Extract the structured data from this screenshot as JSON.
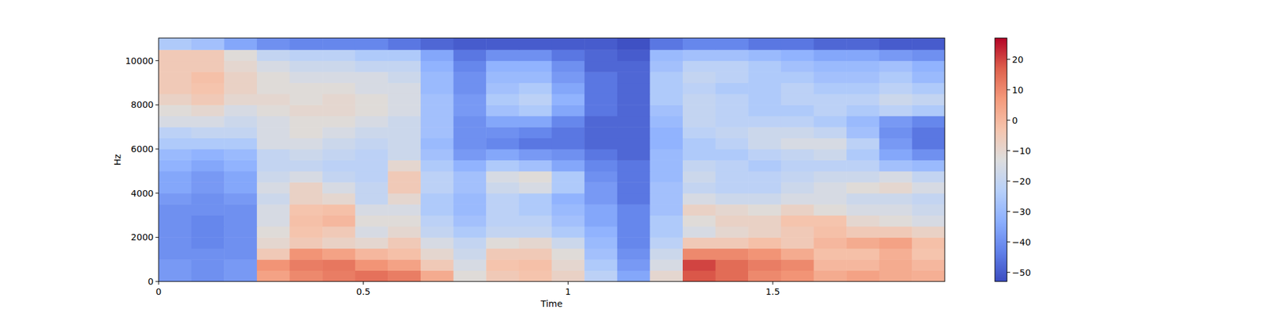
{
  "chart_data": {
    "type": "heatmap",
    "x_label": "Time",
    "y_label": "Hz",
    "x_bins": [
      0,
      0.08,
      0.16,
      0.24,
      0.32,
      0.4,
      0.48,
      0.56,
      0.64,
      0.72,
      0.8,
      0.88,
      0.96,
      1.04,
      1.12,
      1.2,
      1.28,
      1.36,
      1.44,
      1.52,
      1.6,
      1.68,
      1.76,
      1.84,
      1.92
    ],
    "y_bins": [
      0,
      500,
      1000,
      1500,
      2000,
      2500,
      3000,
      3500,
      4000,
      4500,
      5000,
      5500,
      6000,
      6500,
      7000,
      7500,
      8000,
      8500,
      9000,
      9500,
      10000,
      10500,
      11025
    ],
    "values": [
      [
        -38,
        -40,
        -38,
        5,
        10,
        12,
        14,
        12,
        3,
        -12,
        -5,
        -3,
        -8,
        -22,
        -35,
        -10,
        18,
        15,
        10,
        8,
        3,
        5,
        3,
        2
      ],
      [
        -38,
        -40,
        -38,
        8,
        12,
        13,
        8,
        5,
        -5,
        -15,
        -3,
        -2,
        -10,
        -25,
        -38,
        -15,
        20,
        15,
        12,
        10,
        0,
        0,
        3,
        0
      ],
      [
        -40,
        -40,
        -40,
        -5,
        8,
        5,
        0,
        -2,
        -10,
        -18,
        -5,
        -5,
        -12,
        -28,
        -40,
        -18,
        10,
        10,
        8,
        3,
        -2,
        -2,
        2,
        -3
      ],
      [
        -40,
        -42,
        -40,
        -10,
        -5,
        -8,
        -10,
        -5,
        -15,
        -20,
        -12,
        -10,
        -18,
        -30,
        -42,
        -22,
        -5,
        -5,
        -2,
        -5,
        0,
        3,
        5,
        -2
      ],
      [
        -40,
        -42,
        -40,
        -12,
        -3,
        -5,
        -15,
        -10,
        -20,
        -25,
        -20,
        -20,
        -25,
        -32,
        -42,
        -25,
        -15,
        -10,
        -8,
        -5,
        -2,
        -5,
        -5,
        -8
      ],
      [
        -40,
        -42,
        -40,
        -15,
        -2,
        0,
        -12,
        -12,
        -22,
        -28,
        -22,
        -22,
        -28,
        -35,
        -42,
        -25,
        -12,
        -8,
        -8,
        -3,
        -3,
        -10,
        -12,
        -15
      ],
      [
        -40,
        -40,
        -40,
        -15,
        -3,
        -2,
        -15,
        -15,
        -25,
        -30,
        -22,
        -25,
        -30,
        -35,
        -42,
        -28,
        -8,
        -10,
        -12,
        -8,
        -12,
        -15,
        -15,
        -18
      ],
      [
        -38,
        -40,
        -38,
        -18,
        -8,
        -10,
        -20,
        -10,
        -25,
        -30,
        -22,
        -25,
        -32,
        -38,
        -45,
        -28,
        -15,
        -18,
        -18,
        -15,
        -15,
        -18,
        -18,
        -20
      ],
      [
        -35,
        -38,
        -35,
        -15,
        -8,
        -15,
        -20,
        -5,
        -22,
        -28,
        -18,
        -15,
        -25,
        -38,
        -45,
        -28,
        -20,
        -22,
        -22,
        -18,
        -15,
        -12,
        -10,
        -15
      ],
      [
        -35,
        -38,
        -35,
        -18,
        -15,
        -20,
        -22,
        -5,
        -22,
        -28,
        -15,
        -12,
        -25,
        -40,
        -45,
        -30,
        -18,
        -22,
        -22,
        -20,
        -18,
        -18,
        -15,
        -20
      ],
      [
        -32,
        -35,
        -32,
        -20,
        -20,
        -22,
        -22,
        -10,
        -25,
        -32,
        -25,
        -28,
        -35,
        -42,
        -45,
        -30,
        -20,
        -22,
        -25,
        -22,
        -22,
        -22,
        -28,
        -30
      ],
      [
        -30,
        -32,
        -30,
        -20,
        -18,
        -20,
        -22,
        -18,
        -28,
        -38,
        -35,
        -38,
        -40,
        -45,
        -48,
        -30,
        -25,
        -25,
        -22,
        -20,
        -18,
        -25,
        -35,
        -40
      ],
      [
        -25,
        -25,
        -25,
        -15,
        -15,
        -18,
        -20,
        -18,
        -30,
        -40,
        -42,
        -45,
        -45,
        -48,
        -48,
        -32,
        -25,
        -22,
        -18,
        -15,
        -15,
        -22,
        -38,
        -45
      ],
      [
        -22,
        -20,
        -20,
        -15,
        -12,
        -15,
        -18,
        -18,
        -28,
        -40,
        -40,
        -42,
        -45,
        -48,
        -48,
        -32,
        -22,
        -20,
        -18,
        -18,
        -20,
        -28,
        -40,
        -45
      ],
      [
        -15,
        -15,
        -18,
        -15,
        -12,
        -12,
        -15,
        -18,
        -28,
        -40,
        -35,
        -35,
        -42,
        -48,
        -48,
        -30,
        -20,
        -22,
        -22,
        -22,
        -25,
        -30,
        -38,
        -42
      ],
      [
        -12,
        -10,
        -15,
        -12,
        -10,
        -10,
        -12,
        -15,
        -28,
        -38,
        -28,
        -25,
        -35,
        -45,
        -48,
        -28,
        -20,
        -22,
        -25,
        -25,
        -22,
        -25,
        -22,
        -25
      ],
      [
        -8,
        -5,
        -10,
        -10,
        -12,
        -10,
        -12,
        -15,
        -28,
        -38,
        -25,
        -22,
        -32,
        -45,
        -48,
        -25,
        -20,
        -22,
        -25,
        -22,
        -22,
        -22,
        -18,
        -20
      ],
      [
        -5,
        -3,
        -8,
        -12,
        -12,
        -12,
        -15,
        -15,
        -30,
        -40,
        -28,
        -25,
        -35,
        -45,
        -48,
        -25,
        -22,
        -25,
        -25,
        -22,
        -25,
        -25,
        -22,
        -25
      ],
      [
        -5,
        -2,
        -8,
        -12,
        -15,
        -15,
        -15,
        -18,
        -30,
        -40,
        -30,
        -30,
        -38,
        -45,
        -48,
        -25,
        -20,
        -22,
        -25,
        -25,
        -28,
        -28,
        -25,
        -30
      ],
      [
        -5,
        -5,
        -10,
        -15,
        -18,
        -18,
        -20,
        -20,
        -32,
        -42,
        -32,
        -32,
        -40,
        -48,
        -48,
        -28,
        -22,
        -22,
        -25,
        -28,
        -30,
        -30,
        -28,
        -32
      ],
      [
        -5,
        -5,
        -12,
        -20,
        -22,
        -22,
        -25,
        -25,
        -35,
        -45,
        -40,
        -40,
        -45,
        -48,
        -50,
        -30,
        -28,
        -28,
        -30,
        -32,
        -35,
        -35,
        -38,
        -40
      ],
      [
        -25,
        -28,
        -35,
        -40,
        -42,
        -42,
        -42,
        -45,
        -48,
        -50,
        -50,
        -50,
        -50,
        -50,
        -52,
        -45,
        -42,
        -42,
        -45,
        -45,
        -48,
        -48,
        -50,
        -50
      ]
    ],
    "xlim": [
      0,
      1.92
    ],
    "ylim": [
      0,
      11025
    ],
    "xticks": [
      0,
      0.5,
      1,
      1.5
    ],
    "yticks": [
      0,
      2000,
      4000,
      6000,
      8000,
      10000
    ],
    "zlim": [
      -53,
      27
    ],
    "zticks": [
      {
        "value": -50,
        "label": "−50"
      },
      {
        "value": -40,
        "label": "−40"
      },
      {
        "value": -30,
        "label": "−30"
      },
      {
        "value": -20,
        "label": "−20"
      },
      {
        "value": -10,
        "label": "−10"
      },
      0,
      10,
      20
    ]
  }
}
